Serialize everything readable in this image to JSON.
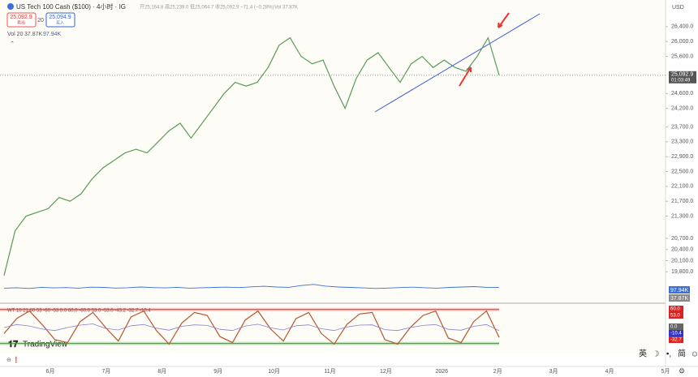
{
  "header": {
    "title": "US Tech 100 Cash ($100) · 4小时 · IG",
    "ohlc": "开25,164.8 高25,239.0 低25,064.7 收25,092.9 −71.4 (−0.28%)",
    "vol": "Vol 37.87K",
    "sell_price": "25,092.9",
    "sell_label": "卖出",
    "spread": "20",
    "buy_price": "25,094.9",
    "buy_label": "买入",
    "vol_legend": "Vol 20",
    "vol_value": "37.87K",
    "vol_ma": "97.94K",
    "currency": "USD"
  },
  "chart_data": {
    "type": "line",
    "color": "#5a9a5a",
    "values": [
      19700,
      20900,
      21300,
      21400,
      21500,
      21800,
      21700,
      21900,
      22300,
      22600,
      22800,
      23000,
      23100,
      23000,
      23300,
      23600,
      23800,
      23400,
      23800,
      24200,
      24600,
      24900,
      24800,
      24900,
      25300,
      25900,
      26100,
      25600,
      25400,
      25500,
      24800,
      24200,
      25000,
      25500,
      25700,
      25300,
      24900,
      25400,
      25600,
      25300,
      25500,
      25300,
      25200,
      25600,
      26100,
      25092
    ],
    "ylim": [
      19150,
      26900
    ],
    "yticks": [
      {
        "value": 26400,
        "label": "26,400.0"
      },
      {
        "value": 26000,
        "label": "26,000.0"
      },
      {
        "value": 25600,
        "label": "25,600.0"
      },
      {
        "value": 24600,
        "label": "24,600.0"
      },
      {
        "value": 24200,
        "label": "24,200.0"
      },
      {
        "value": 23700,
        "label": "23,700.0"
      },
      {
        "value": 23300,
        "label": "23,300.0"
      },
      {
        "value": 22900,
        "label": "22,900.0"
      },
      {
        "value": 22500,
        "label": "22,500.0"
      },
      {
        "value": 22100,
        "label": "22,100.0"
      },
      {
        "value": 21700,
        "label": "21,700.0"
      },
      {
        "value": 21300,
        "label": "21,300.0"
      },
      {
        "value": 20700,
        "label": "20,700.0"
      },
      {
        "value": 20400,
        "label": "20,400.0"
      },
      {
        "value": 20100,
        "label": "20,100.0"
      },
      {
        "value": 19800,
        "label": "19,800.0"
      }
    ],
    "time_axis_labels": [
      "6月",
      "7月",
      "8月",
      "9月",
      "10月",
      "11月",
      "12月",
      "2026",
      "2月",
      "3月",
      "4月",
      "5月"
    ],
    "price_tag": {
      "value": 25092.9,
      "label": "25,092.9"
    },
    "countdown": "01:03:49"
  },
  "volume": {
    "color": "#3b6fd8",
    "values": [
      92,
      95,
      90,
      98,
      94,
      96,
      92,
      99,
      97,
      93,
      95,
      100,
      96,
      94,
      98,
      92,
      95,
      97,
      99,
      96,
      101,
      105,
      100,
      98,
      110,
      118,
      106,
      100,
      97,
      94,
      90,
      93,
      96,
      99,
      95,
      92,
      97,
      100,
      103,
      98,
      97.94
    ],
    "ylim": [
      0,
      400
    ],
    "tags": [
      {
        "value": 97.94,
        "label": "97.94K"
      },
      {
        "value": 37.87,
        "label": "37.87K"
      }
    ]
  },
  "oscillator": {
    "legend": "WT 10 21 60 53 -60 -53 0.0 60.0 -60.0 53.0 -53.0 -43.2 -32.7 -10.4",
    "ylim": [
      -70,
      70
    ],
    "levels": [
      60,
      -53
    ],
    "series": [
      {
        "color": "#b5582c",
        "values": [
          -20,
          30,
          55,
          10,
          -40,
          -50,
          20,
          50,
          0,
          -45,
          35,
          55,
          -10,
          -55,
          15,
          50,
          40,
          -30,
          -50,
          25,
          55,
          -5,
          -45,
          30,
          50,
          -20,
          -55,
          10,
          45,
          50,
          -40,
          -55,
          0,
          40,
          55,
          -35,
          -50,
          20,
          55,
          -32.7
        ]
      },
      {
        "color": "#8a7fd0",
        "values": [
          0,
          10,
          5,
          -5,
          -10,
          0,
          8,
          12,
          -3,
          -8,
          6,
          10,
          -2,
          -9,
          4,
          9,
          7,
          -6,
          -10,
          5,
          11,
          -1,
          -8,
          6,
          9,
          -4,
          -10,
          2,
          8,
          9,
          -7,
          -10,
          0,
          7,
          10,
          -6,
          -9,
          4,
          10,
          -10.4
        ]
      }
    ],
    "tags": [
      {
        "value": 60,
        "label": "60.0"
      },
      {
        "value": 53,
        "label": "53.0"
      },
      {
        "value": 0,
        "label": "0.0"
      },
      {
        "value": -10.4,
        "label": "-10.4"
      },
      {
        "value": -32.7,
        "label": "-32.7"
      }
    ]
  },
  "footer": {
    "brand": "TradingView",
    "ime": [
      "英",
      "☽",
      "•,",
      "简",
      "☺"
    ]
  }
}
